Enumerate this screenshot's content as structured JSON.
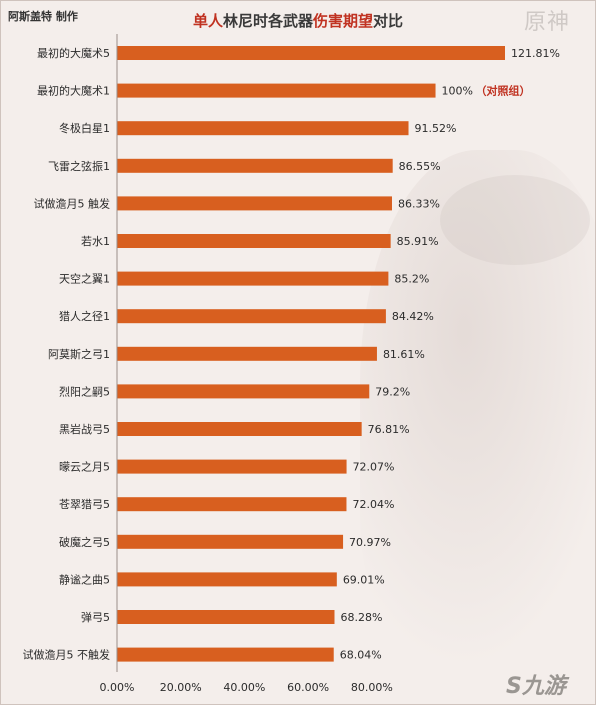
{
  "author": "阿斯盖特 制作",
  "title": {
    "part1": "单人",
    "part2": "林尼时各武器",
    "part3": "伤害期望",
    "part4": "对比"
  },
  "logo_text": "原神",
  "watermark": "九游",
  "colors": {
    "bar": "#d85f1f",
    "accent": "#c03221"
  },
  "chart_data": {
    "type": "bar",
    "orientation": "horizontal",
    "categories": [
      "最初的大魔术5",
      "最初的大魔术1",
      "冬极白星1",
      "飞雷之弦振1",
      "试做澹月5 触发",
      "若水1",
      "天空之翼1",
      "猎人之径1",
      "阿莫斯之弓1",
      "烈阳之嗣5",
      "黑岩战弓5",
      "曚云之月5",
      "苍翠猎弓5",
      "破魔之弓5",
      "静谧之曲5",
      "弹弓5",
      "试做澹月5 不触发"
    ],
    "values": [
      121.81,
      100,
      91.52,
      86.55,
      86.33,
      85.91,
      85.2,
      84.42,
      81.61,
      79.2,
      76.81,
      72.07,
      72.04,
      70.97,
      69.01,
      68.28,
      68.04
    ],
    "value_labels": [
      "121.81%",
      "100%",
      "91.52%",
      "86.55%",
      "86.33%",
      "85.91%",
      "85.2%",
      "84.42%",
      "81.61%",
      "79.2%",
      "76.81%",
      "72.07%",
      "72.04%",
      "70.97%",
      "69.01%",
      "68.28%",
      "68.04%"
    ],
    "annotations": [
      {
        "index": 1,
        "text": "（对照组）"
      }
    ],
    "x_ticks": [
      "0.00%",
      "20.00%",
      "40.00%",
      "60.00%",
      "80.00%"
    ],
    "xlim": [
      0,
      125
    ],
    "grid": false
  }
}
